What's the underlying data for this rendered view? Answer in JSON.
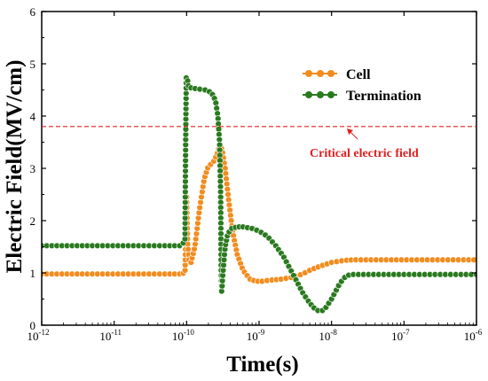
{
  "chart_data": {
    "type": "line",
    "title": "",
    "xlabel": "Time(s)",
    "ylabel": "Electric Field(MV/cm)",
    "x_scale": "log",
    "xlim": [
      1e-12,
      1e-06
    ],
    "ylim": [
      0,
      6
    ],
    "x_ticks": [
      1e-12,
      1e-11,
      1e-10,
      1e-09,
      1e-08,
      1e-07,
      1e-06
    ],
    "x_tick_labels": [
      {
        "base": "10",
        "exp": "-12"
      },
      {
        "base": "10",
        "exp": "-11"
      },
      {
        "base": "10",
        "exp": "-10"
      },
      {
        "base": "10",
        "exp": "-9"
      },
      {
        "base": "10",
        "exp": "-8"
      },
      {
        "base": "10",
        "exp": "-7"
      },
      {
        "base": "10",
        "exp": "-6"
      }
    ],
    "y_ticks": [
      0,
      1,
      2,
      3,
      4,
      5,
      6
    ],
    "y_tick_labels": [
      "0",
      "1",
      "2",
      "3",
      "4",
      "5",
      "6"
    ],
    "legend_position": "top-right",
    "grid": false,
    "series": [
      {
        "name": "Cell",
        "color": "#f28c1e",
        "marker": "circle",
        "points": [
          [
            1e-12,
            0.98
          ],
          [
            5e-12,
            0.98
          ],
          [
            2e-11,
            0.98
          ],
          [
            5e-11,
            0.98
          ],
          [
            8e-11,
            0.98
          ],
          [
            9.5e-11,
            1.0
          ],
          [
            9.8e-11,
            1.8
          ],
          [
            1e-10,
            2.45
          ],
          [
            1.03e-10,
            1.6
          ],
          [
            1.08e-10,
            1.25
          ],
          [
            1.15e-10,
            1.2
          ],
          [
            1.3e-10,
            1.5
          ],
          [
            1.5e-10,
            2.2
          ],
          [
            1.75e-10,
            2.8
          ],
          [
            2e-10,
            3.05
          ],
          [
            2.3e-10,
            3.1
          ],
          [
            2.6e-10,
            3.25
          ],
          [
            2.9e-10,
            3.45
          ],
          [
            3.1e-10,
            3.35
          ],
          [
            3.4e-10,
            3.0
          ],
          [
            3.8e-10,
            2.4
          ],
          [
            4.3e-10,
            1.8
          ],
          [
            5e-10,
            1.35
          ],
          [
            6e-10,
            1.05
          ],
          [
            7.5e-10,
            0.88
          ],
          [
            9e-10,
            0.84
          ],
          [
            1.1e-09,
            0.84
          ],
          [
            1.4e-09,
            0.86
          ],
          [
            2e-09,
            0.88
          ],
          [
            3e-09,
            0.92
          ],
          [
            4e-09,
            0.98
          ],
          [
            5e-09,
            1.05
          ],
          [
            7e-09,
            1.13
          ],
          [
            1e-08,
            1.2
          ],
          [
            1.5e-08,
            1.24
          ],
          [
            2e-08,
            1.25
          ],
          [
            1e-07,
            1.25
          ],
          [
            1e-06,
            1.25
          ]
        ]
      },
      {
        "name": "Termination",
        "color": "#2a7a1f",
        "marker": "circle",
        "points": [
          [
            1e-12,
            1.52
          ],
          [
            5e-12,
            1.52
          ],
          [
            2e-11,
            1.52
          ],
          [
            5e-11,
            1.52
          ],
          [
            8e-11,
            1.52
          ],
          [
            9.5e-11,
            1.6
          ],
          [
            9.7e-11,
            3.5
          ],
          [
            9.9e-11,
            4.78
          ],
          [
            1.02e-10,
            4.72
          ],
          [
            1.06e-10,
            4.58
          ],
          [
            1.15e-10,
            4.54
          ],
          [
            1.4e-10,
            4.52
          ],
          [
            1.8e-10,
            4.5
          ],
          [
            2.2e-10,
            4.45
          ],
          [
            2.5e-10,
            4.3
          ],
          [
            2.7e-10,
            4.0
          ],
          [
            2.85e-10,
            3.5
          ],
          [
            2.95e-10,
            2.5
          ],
          [
            3e-10,
            1.0
          ],
          [
            3.05e-10,
            0.6
          ],
          [
            3.15e-10,
            0.95
          ],
          [
            3.4e-10,
            1.5
          ],
          [
            3.7e-10,
            1.75
          ],
          [
            4.2e-10,
            1.85
          ],
          [
            5e-10,
            1.88
          ],
          [
            6e-10,
            1.88
          ],
          [
            8e-10,
            1.85
          ],
          [
            1e-09,
            1.8
          ],
          [
            1.3e-09,
            1.7
          ],
          [
            1.7e-09,
            1.52
          ],
          [
            2.2e-09,
            1.3
          ],
          [
            3e-09,
            0.95
          ],
          [
            4e-09,
            0.62
          ],
          [
            5e-09,
            0.42
          ],
          [
            6e-09,
            0.3
          ],
          [
            7e-09,
            0.26
          ],
          [
            8e-09,
            0.3
          ],
          [
            1e-08,
            0.5
          ],
          [
            1.3e-08,
            0.8
          ],
          [
            1.6e-08,
            0.95
          ],
          [
            2e-08,
            0.97
          ],
          [
            1e-07,
            0.97
          ],
          [
            1e-06,
            0.97
          ]
        ]
      }
    ],
    "reference_line": {
      "y": 3.8,
      "color": "#e0201f",
      "style": "dashed",
      "label": "Critical electric field"
    }
  }
}
